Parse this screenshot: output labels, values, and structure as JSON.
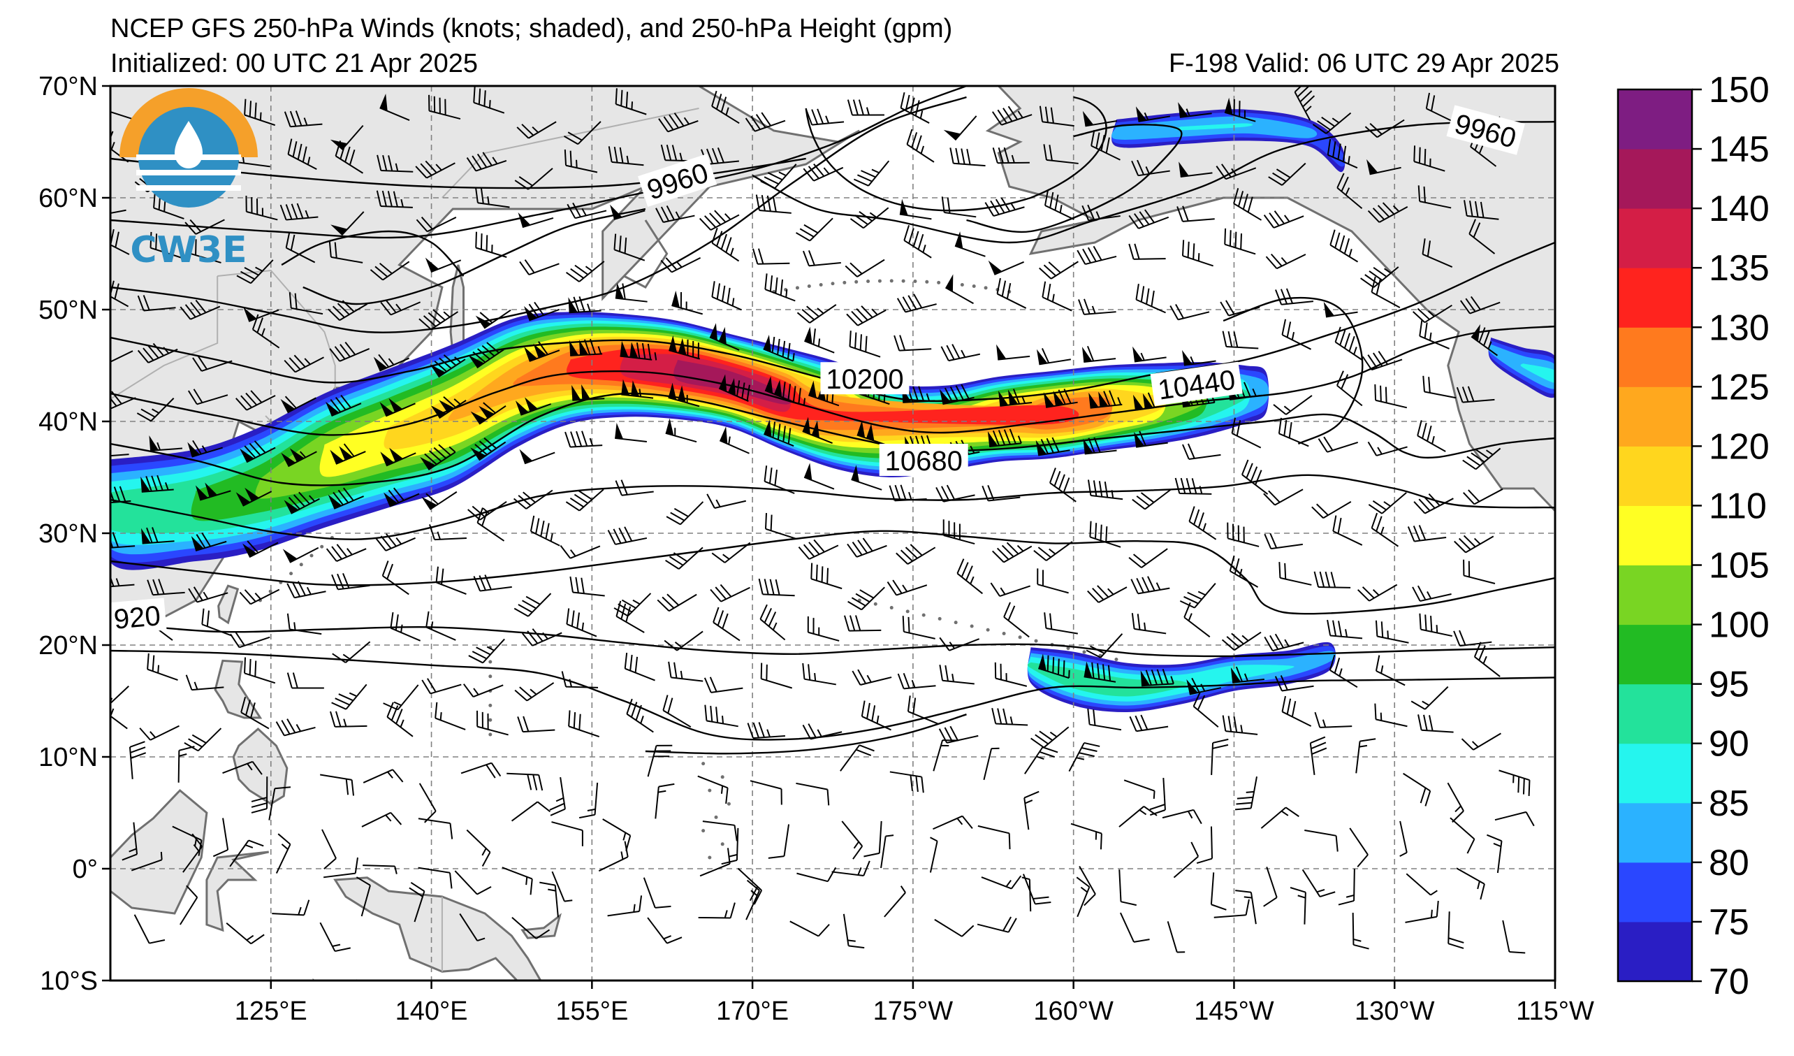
{
  "title": {
    "line1": "NCEP GFS 250-hPa Winds (knots; shaded), and 250-hPa Height (gpm)",
    "line2_left": "Initialized: 00 UTC 21 Apr 2025",
    "line2_right": "F-198  Valid: 06 UTC 29 Apr 2025"
  },
  "logo": {
    "text": "CW3E"
  },
  "map": {
    "lon_range": [
      110,
      245
    ],
    "lat_range": [
      -10,
      70
    ],
    "lat_ticks": [
      {
        "value": 70,
        "label": "70°N"
      },
      {
        "value": 60,
        "label": "60°N"
      },
      {
        "value": 50,
        "label": "50°N"
      },
      {
        "value": 40,
        "label": "40°N"
      },
      {
        "value": 30,
        "label": "30°N"
      },
      {
        "value": 20,
        "label": "20°N"
      },
      {
        "value": 10,
        "label": "10°N"
      },
      {
        "value": 0,
        "label": "0°"
      },
      {
        "value": -10,
        "label": "10°S"
      }
    ],
    "lon_ticks": [
      {
        "value": 125,
        "label": "125°E"
      },
      {
        "value": 140,
        "label": "140°E"
      },
      {
        "value": 155,
        "label": "155°E"
      },
      {
        "value": 170,
        "label": "170°E"
      },
      {
        "value": 185,
        "label": "175°W"
      },
      {
        "value": 200,
        "label": "160°W"
      },
      {
        "value": 215,
        "label": "145°W"
      },
      {
        "value": 230,
        "label": "130°W"
      },
      {
        "value": 245,
        "label": "115°W"
      }
    ],
    "contour_labels": [
      {
        "text": "9960",
        "lon": 163,
        "lat": 61.5,
        "rot": -18
      },
      {
        "text": "9960",
        "lon": 238.5,
        "lat": 66,
        "rot": 15
      },
      {
        "text": "10200",
        "lon": 180.5,
        "lat": 43.8,
        "rot": 0
      },
      {
        "text": "10440",
        "lon": 211.5,
        "lat": 43.3,
        "rot": -8
      },
      {
        "text": "10680",
        "lon": 186,
        "lat": 36.5,
        "rot": 0
      },
      {
        "text": "920",
        "lon": 112.5,
        "lat": 22.5,
        "rot": -5
      }
    ]
  },
  "colorbar": {
    "colors": [
      "#2a1ec4",
      "#2a47ff",
      "#2bb2ff",
      "#25f5ee",
      "#23e29b",
      "#22bb23",
      "#79d523",
      "#ffff23",
      "#ffd61e",
      "#ffa81e",
      "#ff7a1e",
      "#ff231e",
      "#d41e46",
      "#a5185a",
      "#7e1d82"
    ],
    "tick_labels": [
      "70",
      "75",
      "80",
      "85",
      "90",
      "95",
      "100",
      "105",
      "110",
      "120",
      "125",
      "130",
      "135",
      "140",
      "145",
      "150"
    ]
  },
  "colors": {
    "land": "#e6e6e6",
    "coastline": "#707070",
    "grid": "#808080"
  }
}
